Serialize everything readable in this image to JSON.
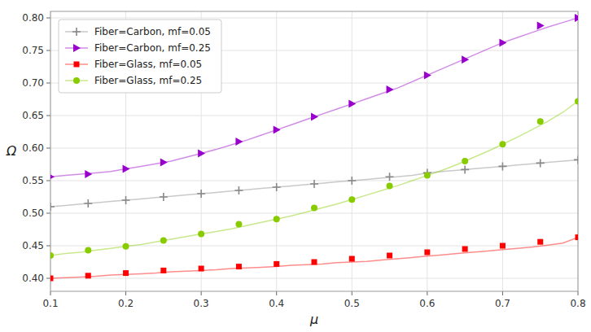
{
  "chart_data": {
    "type": "line",
    "xlabel": "μ",
    "ylabel": "Ω",
    "xlim": [
      0.1,
      0.8
    ],
    "ylim": [
      0.38,
      0.81
    ],
    "xticks": [
      0.1,
      0.2,
      0.3,
      0.4,
      0.5,
      0.6,
      0.7,
      0.8
    ],
    "yticks": [
      {
        "value": 0.4,
        "label": "0.40"
      },
      0.45,
      {
        "value": 0.5,
        "label": "0.50"
      },
      0.55,
      {
        "value": 0.6,
        "label": "0.60"
      },
      0.65,
      {
        "value": 0.7,
        "label": "0.70"
      },
      0.75,
      {
        "value": 0.8,
        "label": "0.80"
      }
    ],
    "grid": true,
    "legend": "upper left",
    "series": [
      {
        "name": "Fiber=Carbon, mf=0.05",
        "color": "#888888",
        "marker": "plus",
        "x": [
          0.1,
          0.12,
          0.14,
          0.16,
          0.18,
          0.2,
          0.22,
          0.24,
          0.26,
          0.28,
          0.3,
          0.32,
          0.34,
          0.36,
          0.38,
          0.4,
          0.42,
          0.44,
          0.46,
          0.48,
          0.5,
          0.52,
          0.54,
          0.56,
          0.58,
          0.6,
          0.62,
          0.64,
          0.66,
          0.68,
          0.7,
          0.72,
          0.74,
          0.76,
          0.78,
          0.8
        ],
        "values": [
          0.51,
          0.512,
          0.514,
          0.516,
          0.518,
          0.52,
          0.522,
          0.524,
          0.526,
          0.528,
          0.53,
          0.532,
          0.534,
          0.536,
          0.538,
          0.54,
          0.542,
          0.544,
          0.546,
          0.548,
          0.55,
          0.552,
          0.554,
          0.556,
          0.558,
          0.562,
          0.564,
          0.566,
          0.568,
          0.57,
          0.572,
          0.574,
          0.576,
          0.578,
          0.58,
          0.582
        ],
        "marker_x": [
          0.1,
          0.15,
          0.2,
          0.25,
          0.3,
          0.35,
          0.4,
          0.45,
          0.5,
          0.55,
          0.6,
          0.65,
          0.7,
          0.75,
          0.8
        ],
        "marker_values": [
          0.51,
          0.515,
          0.52,
          0.525,
          0.53,
          0.535,
          0.54,
          0.545,
          0.55,
          0.556,
          0.562,
          0.567,
          0.572,
          0.577,
          0.582
        ]
      },
      {
        "name": "Fiber=Carbon, mf=0.25",
        "color": "#9900CC",
        "marker": "triangle_right",
        "x": [
          0.1,
          0.12,
          0.14,
          0.16,
          0.18,
          0.2,
          0.22,
          0.24,
          0.26,
          0.28,
          0.3,
          0.32,
          0.34,
          0.36,
          0.38,
          0.4,
          0.42,
          0.44,
          0.46,
          0.48,
          0.5,
          0.52,
          0.54,
          0.56,
          0.58,
          0.6,
          0.62,
          0.64,
          0.66,
          0.68,
          0.7,
          0.72,
          0.74,
          0.76,
          0.78,
          0.8
        ],
        "values": [
          0.556,
          0.558,
          0.56,
          0.562,
          0.564,
          0.568,
          0.572,
          0.576,
          0.58,
          0.586,
          0.592,
          0.598,
          0.605,
          0.612,
          0.62,
          0.628,
          0.636,
          0.644,
          0.652,
          0.66,
          0.668,
          0.676,
          0.684,
          0.692,
          0.702,
          0.712,
          0.722,
          0.732,
          0.742,
          0.752,
          0.762,
          0.77,
          0.778,
          0.786,
          0.793,
          0.8
        ],
        "marker_x": [
          0.1,
          0.15,
          0.2,
          0.25,
          0.3,
          0.35,
          0.4,
          0.45,
          0.5,
          0.55,
          0.6,
          0.65,
          0.7,
          0.75,
          0.8
        ],
        "marker_values": [
          0.556,
          0.56,
          0.568,
          0.578,
          0.592,
          0.61,
          0.628,
          0.648,
          0.668,
          0.69,
          0.712,
          0.736,
          0.762,
          0.788,
          0.8
        ]
      },
      {
        "name": "Fiber=Glass, mf=0.05",
        "color": "#FF0000",
        "marker": "square",
        "x": [
          0.1,
          0.12,
          0.14,
          0.16,
          0.18,
          0.2,
          0.22,
          0.24,
          0.26,
          0.28,
          0.3,
          0.32,
          0.34,
          0.36,
          0.38,
          0.4,
          0.42,
          0.44,
          0.46,
          0.48,
          0.5,
          0.52,
          0.54,
          0.56,
          0.58,
          0.6,
          0.62,
          0.64,
          0.66,
          0.68,
          0.7,
          0.72,
          0.74,
          0.76,
          0.78,
          0.8
        ],
        "values": [
          0.4,
          0.401,
          0.402,
          0.403,
          0.405,
          0.406,
          0.407,
          0.408,
          0.41,
          0.411,
          0.412,
          0.413,
          0.415,
          0.416,
          0.417,
          0.418,
          0.42,
          0.421,
          0.422,
          0.424,
          0.425,
          0.426,
          0.428,
          0.43,
          0.432,
          0.434,
          0.436,
          0.438,
          0.44,
          0.442,
          0.444,
          0.446,
          0.448,
          0.451,
          0.454,
          0.463
        ],
        "marker_x": [
          0.1,
          0.15,
          0.2,
          0.25,
          0.3,
          0.35,
          0.4,
          0.45,
          0.5,
          0.55,
          0.6,
          0.65,
          0.7,
          0.75,
          0.8
        ],
        "marker_values": [
          0.4,
          0.404,
          0.408,
          0.412,
          0.415,
          0.418,
          0.422,
          0.425,
          0.43,
          0.435,
          0.44,
          0.445,
          0.45,
          0.456,
          0.463
        ]
      },
      {
        "name": "Fiber=Glass, mf=0.25",
        "color": "#88CC00",
        "marker": "circle",
        "x": [
          0.1,
          0.12,
          0.14,
          0.16,
          0.18,
          0.2,
          0.22,
          0.24,
          0.26,
          0.28,
          0.3,
          0.32,
          0.34,
          0.36,
          0.38,
          0.4,
          0.42,
          0.44,
          0.46,
          0.48,
          0.5,
          0.52,
          0.54,
          0.56,
          0.58,
          0.6,
          0.62,
          0.64,
          0.66,
          0.68,
          0.7,
          0.72,
          0.74,
          0.76,
          0.78,
          0.8
        ],
        "values": [
          0.435,
          0.438,
          0.44,
          0.443,
          0.446,
          0.449,
          0.452,
          0.456,
          0.46,
          0.464,
          0.468,
          0.472,
          0.476,
          0.481,
          0.486,
          0.491,
          0.496,
          0.502,
          0.508,
          0.514,
          0.521,
          0.528,
          0.535,
          0.542,
          0.55,
          0.558,
          0.566,
          0.575,
          0.585,
          0.595,
          0.606,
          0.617,
          0.629,
          0.641,
          0.655,
          0.672
        ],
        "marker_x": [
          0.1,
          0.15,
          0.2,
          0.25,
          0.3,
          0.35,
          0.4,
          0.45,
          0.5,
          0.55,
          0.6,
          0.65,
          0.7,
          0.75,
          0.8
        ],
        "marker_values": [
          0.435,
          0.443,
          0.449,
          0.458,
          0.468,
          0.483,
          0.491,
          0.508,
          0.521,
          0.542,
          0.558,
          0.58,
          0.606,
          0.641,
          0.672
        ]
      }
    ]
  }
}
